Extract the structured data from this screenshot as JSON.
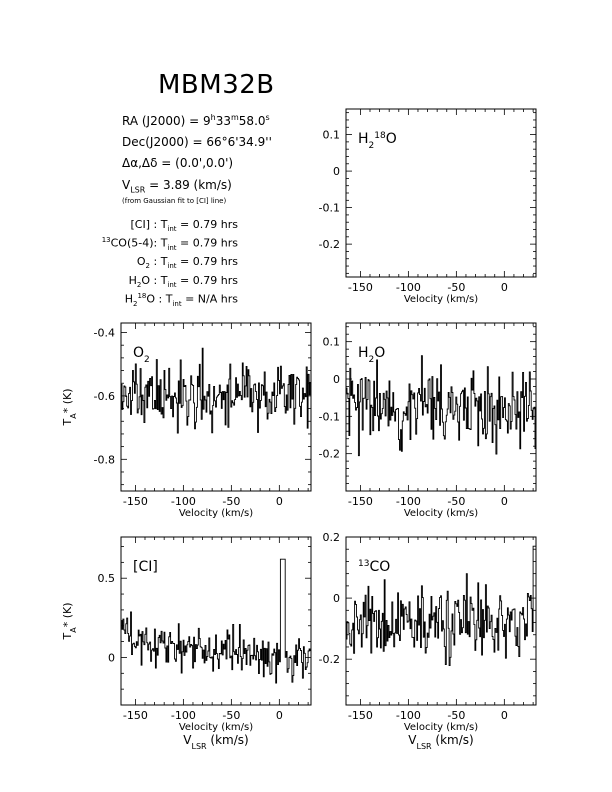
{
  "source": "MBM32B",
  "info": {
    "ra": "RA (J2000) = 9h33m58.0s",
    "dec": "Dec(J2000) = 66°6'34.9''",
    "offset": "Δα,Δδ = (0.0',0.0')",
    "vlsr": "VLSR = 3.89 (km/s)",
    "vlsr_note": "(from Gaussian fit to [CI] line)"
  },
  "integration_times": [
    {
      "species": "[CI]",
      "text": "[CI] : Tint = 0.79 hrs"
    },
    {
      "species": "13CO(5-4)",
      "text": "13CO(5-4): Tint = 0.79 hrs"
    },
    {
      "species": "O2",
      "text": "O2 : Tint = 0.79 hrs"
    },
    {
      "species": "H2O",
      "text": "H2O : Tint = 0.79 hrs"
    },
    {
      "species": "H218O",
      "text": "H218O : Tint = N/A hrs"
    }
  ],
  "axis_labels": {
    "velocity": "Velocity (km/s)",
    "ta": "TA* (K)",
    "vlsr": "VLSR (km/s)"
  },
  "chart_data": [
    {
      "id": "h218o",
      "type": "line",
      "label": "H218O",
      "xlim": [
        -165,
        33
      ],
      "ylim": [
        -0.29,
        0.17
      ],
      "xticks": [
        -150,
        -100,
        -50,
        0
      ],
      "yticks": [
        0.1,
        0,
        -0.1,
        -0.2
      ],
      "series": []
    },
    {
      "id": "o2",
      "type": "line",
      "label": "O2",
      "xlim": [
        -165,
        33
      ],
      "ylim": [
        -0.9,
        -0.37
      ],
      "xticks": [
        -150,
        -100,
        -50,
        0
      ],
      "yticks": [
        -0.4,
        -0.6,
        -0.8
      ],
      "noise": {
        "mean": -0.6,
        "sigma": 0.065,
        "seed": 11
      }
    },
    {
      "id": "h2o",
      "type": "line",
      "label": "H2O",
      "xlim": [
        -165,
        33
      ],
      "ylim": [
        -0.3,
        0.15
      ],
      "xticks": [
        -150,
        -100,
        -50,
        0
      ],
      "yticks": [
        0.1,
        0,
        -0.1,
        -0.2
      ],
      "noise": {
        "mean": -0.07,
        "sigma": 0.07,
        "seed": 23
      }
    },
    {
      "id": "ci",
      "type": "line",
      "label": "[CI]",
      "xlim": [
        -165,
        33
      ],
      "ylim": [
        -0.3,
        0.76
      ],
      "xticks": [
        -150,
        -100,
        -50,
        0
      ],
      "yticks": [
        0.5,
        0
      ],
      "noise": {
        "mean": 0.05,
        "sigma": 0.09,
        "seed": 37,
        "slope": -0.0007,
        "peak_x": 3,
        "peak_y": 0.62
      }
    },
    {
      "id": "13co",
      "type": "line",
      "label": "13CO",
      "xlim": [
        -165,
        33
      ],
      "ylim": [
        -0.35,
        0.2
      ],
      "xticks": [
        -150,
        -100,
        -50,
        0
      ],
      "yticks": [
        0.2,
        0,
        -0.2
      ],
      "noise": {
        "mean": -0.08,
        "sigma": 0.075,
        "seed": 53,
        "peak_x": 32,
        "peak_y": 0.17
      }
    }
  ]
}
